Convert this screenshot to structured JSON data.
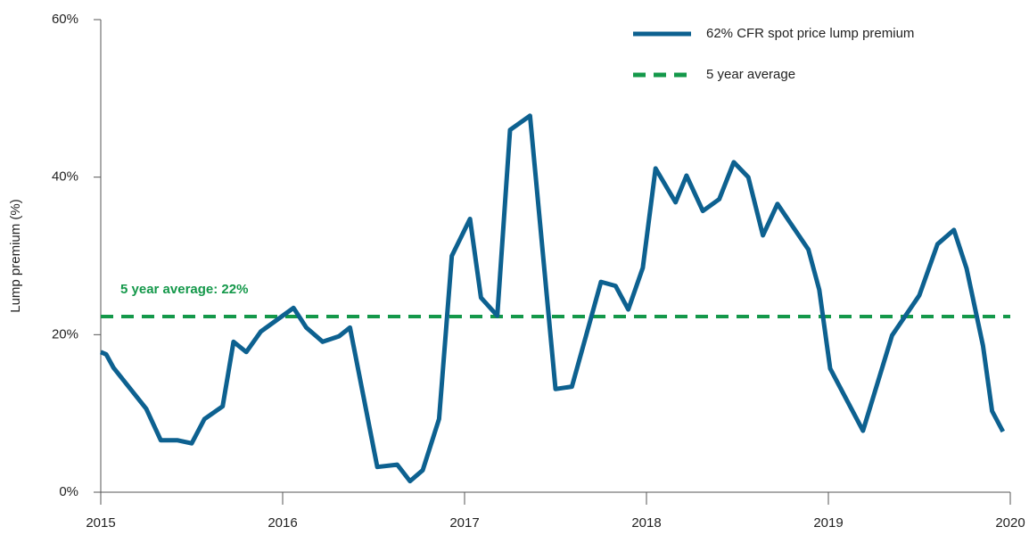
{
  "chart_data": {
    "type": "line",
    "y_label": "Lump premium (%)",
    "annotation": "5 year average: 22%",
    "x": [
      2015.0,
      2015.03,
      2015.07,
      2015.25,
      2015.33,
      2015.42,
      2015.5,
      2015.57,
      2015.67,
      2015.73,
      2015.8,
      2015.88,
      2016.06,
      2016.13,
      2016.22,
      2016.31,
      2016.37,
      2016.52,
      2016.63,
      2016.7,
      2016.77,
      2016.86,
      2016.93,
      2017.03,
      2017.09,
      2017.18,
      2017.25,
      2017.36,
      2017.5,
      2017.59,
      2017.75,
      2017.83,
      2017.9,
      2017.98,
      2018.05,
      2018.16,
      2018.22,
      2018.31,
      2018.4,
      2018.48,
      2018.56,
      2018.64,
      2018.72,
      2018.89,
      2018.95,
      2019.01,
      2019.19,
      2019.35,
      2019.5,
      2019.6,
      2019.69,
      2019.76,
      2019.85,
      2019.9,
      2019.96
    ],
    "series": [
      {
        "name": "62% CFR spot price lump premium",
        "color": "#0d6190",
        "values": [
          17.8,
          17.5,
          15.8,
          10.6,
          6.6,
          6.6,
          6.2,
          9.3,
          10.9,
          19.1,
          17.8,
          20.4,
          23.4,
          20.9,
          19.1,
          19.8,
          20.9,
          3.2,
          3.5,
          1.4,
          2.8,
          9.3,
          30.0,
          34.7,
          24.7,
          22.4,
          46.0,
          47.8,
          13.1,
          13.4,
          26.7,
          26.2,
          23.2,
          28.5,
          41.1,
          36.8,
          40.2,
          35.7,
          37.2,
          41.9,
          40.0,
          32.6,
          36.6,
          30.8,
          25.7,
          15.7,
          7.8,
          19.9,
          25.0,
          31.5,
          33.3,
          28.4,
          18.6,
          10.3,
          7.7
        ]
      }
    ],
    "average": {
      "name": "5 year average",
      "value": 22.3,
      "color": "#14984a"
    },
    "xlim": [
      2015,
      2020
    ],
    "xticks": [
      2015,
      2016,
      2017,
      2018,
      2019,
      2020
    ],
    "ylim": [
      0,
      60
    ],
    "yticks": [
      {
        "value": 0,
        "label": "0%"
      },
      {
        "value": 20,
        "label": "20%"
      },
      {
        "value": 40,
        "label": "40%"
      },
      {
        "value": 60,
        "label": "60%"
      }
    ],
    "legend": "top-right"
  }
}
